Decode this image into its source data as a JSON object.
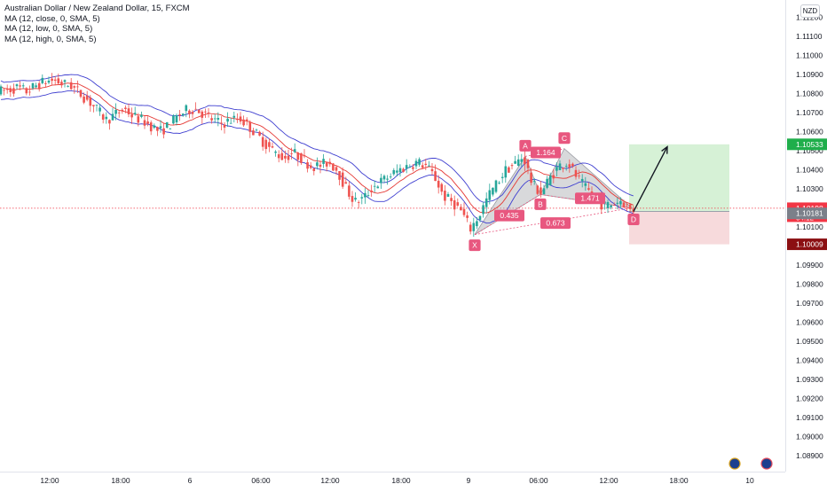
{
  "legend": {
    "symbol": "Australian Dollar / New Zealand Dollar, 15, FXCM",
    "ma_close": "MA (12, close, 0, SMA, 5)",
    "ma_low": "MA (12, low, 0, SMA, 5)",
    "ma_high": "MA (12, high, 0, SMA, 5)"
  },
  "currency_badge": "NZD",
  "colors": {
    "up": "#26a69a",
    "down": "#ef5350",
    "ma_close": "#e53935",
    "ma_band": "#3f3fd0",
    "pattern_label": "#e8577f",
    "target_zone": "#cfeecf",
    "stop_zone": "#f6d6d8",
    "target_tag": "#1fae4b",
    "stop_tag": "#8b0f12",
    "price_tag": "#f23645",
    "entry_tag": "#7b808a"
  },
  "chart_data": {
    "type": "candlestick",
    "x_axis_labels": [
      "12:00",
      "18:00",
      "6",
      "06:00",
      "12:00",
      "18:00",
      "9",
      "06:00",
      "12:00",
      "18:00",
      "10"
    ],
    "y_axis_labels": [
      "1.11200",
      "1.11100",
      "1.11000",
      "1.10900",
      "1.10800",
      "1.10700",
      "1.10600",
      "1.10500",
      "1.10400",
      "1.10300",
      "1.10200",
      "1.10100",
      "1.10000",
      "1.09900",
      "1.09800",
      "1.09700",
      "1.09600",
      "1.09500",
      "1.09400",
      "1.09300",
      "1.09200",
      "1.09100",
      "1.09000",
      "1.08900"
    ],
    "y_range": [
      1.0885,
      1.1125
    ],
    "close_path": [
      [
        0,
        1.1081
      ],
      [
        10,
        1.1082
      ],
      [
        20,
        1.1083
      ],
      [
        30,
        1.1081
      ],
      [
        40,
        1.1084
      ],
      [
        50,
        1.1086
      ],
      [
        60,
        1.1087
      ],
      [
        70,
        1.1085
      ],
      [
        80,
        1.1084
      ],
      [
        90,
        1.108
      ],
      [
        100,
        1.1076
      ],
      [
        110,
        1.1071
      ],
      [
        120,
        1.1066
      ],
      [
        130,
        1.1069
      ],
      [
        140,
        1.1072
      ],
      [
        150,
        1.1068
      ],
      [
        160,
        1.1066
      ],
      [
        170,
        1.1063
      ],
      [
        180,
        1.106
      ],
      [
        190,
        1.1063
      ],
      [
        200,
        1.1068
      ],
      [
        210,
        1.1071
      ],
      [
        220,
        1.1072
      ],
      [
        230,
        1.1069
      ],
      [
        240,
        1.1066
      ],
      [
        250,
        1.1064
      ],
      [
        260,
        1.1066
      ],
      [
        270,
        1.1067
      ],
      [
        280,
        1.1063
      ],
      [
        290,
        1.1058
      ],
      [
        300,
        1.1053
      ],
      [
        310,
        1.1049
      ],
      [
        320,
        1.1046
      ],
      [
        330,
        1.1049
      ],
      [
        340,
        1.1046
      ],
      [
        350,
        1.1042
      ],
      [
        360,
        1.1042
      ],
      [
        370,
        1.1044
      ],
      [
        380,
        1.104
      ],
      [
        390,
        1.103
      ],
      [
        400,
        1.1023
      ],
      [
        410,
        1.1025
      ],
      [
        420,
        1.1031
      ],
      [
        430,
        1.1034
      ],
      [
        440,
        1.1037
      ],
      [
        450,
        1.104
      ],
      [
        460,
        1.1042
      ],
      [
        470,
        1.1044
      ],
      [
        480,
        1.1042
      ],
      [
        490,
        1.1036
      ],
      [
        500,
        1.1026
      ],
      [
        510,
        1.1023
      ],
      [
        520,
        1.1018
      ],
      [
        530,
        1.1009
      ],
      [
        540,
        1.1016
      ],
      [
        550,
        1.1026
      ],
      [
        560,
        1.1033
      ],
      [
        570,
        1.104
      ],
      [
        580,
        1.1043
      ],
      [
        590,
        1.1047
      ],
      [
        600,
        1.1032
      ],
      [
        610,
        1.1028
      ],
      [
        620,
        1.1036
      ],
      [
        630,
        1.1042
      ],
      [
        640,
        1.1044
      ],
      [
        650,
        1.1036
      ],
      [
        660,
        1.103
      ],
      [
        670,
        1.1026
      ],
      [
        680,
        1.1021
      ],
      [
        690,
        1.1022
      ],
      [
        700,
        1.1024
      ],
      [
        710,
        1.1019
      ]
    ],
    "pattern": {
      "points": [
        {
          "label": "X",
          "t": 535,
          "price": 1.1006
        },
        {
          "label": "A",
          "t": 592,
          "price": 1.1047
        },
        {
          "label": "B",
          "t": 609,
          "price": 1.1027
        },
        {
          "label": "C",
          "t": 636,
          "price": 1.1051
        },
        {
          "label": "D",
          "t": 712,
          "price": 1.102
        }
      ],
      "ratios": [
        {
          "text": "0.435",
          "t": 574,
          "price": 1.1016
        },
        {
          "text": "1.164",
          "t": 615,
          "price": 1.1049
        },
        {
          "text": "1.471",
          "t": 665,
          "price": 1.1025
        },
        {
          "text": "0.673",
          "t": 626,
          "price": 1.1012
        }
      ]
    },
    "position": {
      "entry": 1.10181,
      "target": 1.10533,
      "stop": 1.10009,
      "start_t": 709,
      "end_t": 822,
      "arrow_to": {
        "t": 752,
        "price": 1.1052
      }
    },
    "price_tags": {
      "target": "1.10533",
      "current": "1.10198",
      "countdown": "04:12",
      "entry": "1.10181",
      "stop": "1.10009"
    },
    "current_price": 1.10198
  }
}
